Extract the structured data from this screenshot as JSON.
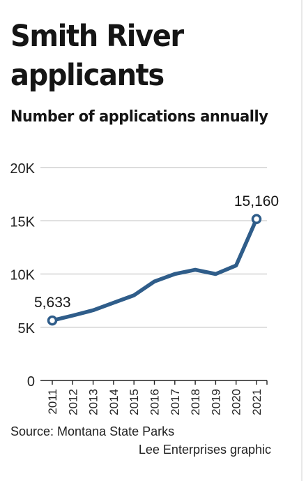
{
  "header": {
    "title": "Smith River applicants",
    "subtitle": "Number of applications annually"
  },
  "footer": {
    "source": "Source: Montana State Parks",
    "credit": "Lee Enterprises graphic"
  },
  "colors": {
    "line": "#2f5d8a",
    "grid": "#c8c8c8",
    "text": "#151515"
  },
  "chart_data": {
    "type": "line",
    "title": "Smith River applicants",
    "subtitle": "Number of applications annually",
    "xlabel": "",
    "ylabel": "",
    "x": [
      "2011",
      "2012",
      "2013",
      "2014",
      "2015",
      "2016",
      "2017",
      "2018",
      "2019",
      "2020",
      "2021"
    ],
    "series": [
      {
        "values": [
          5633,
          6100,
          6600,
          7300,
          8000,
          9300,
          10000,
          10400,
          10000,
          10800,
          15160
        ]
      }
    ],
    "ylim": [
      0,
      20000
    ],
    "yticks": [
      0,
      5000,
      10000,
      15000,
      20000
    ],
    "ytick_labels": [
      "0",
      "5K",
      "10K",
      "15K",
      "20K"
    ],
    "data_labels": [
      {
        "x": "2011",
        "text": "5,633"
      },
      {
        "x": "2021",
        "text": "15,160"
      }
    ],
    "grid": true,
    "legend": "none"
  }
}
